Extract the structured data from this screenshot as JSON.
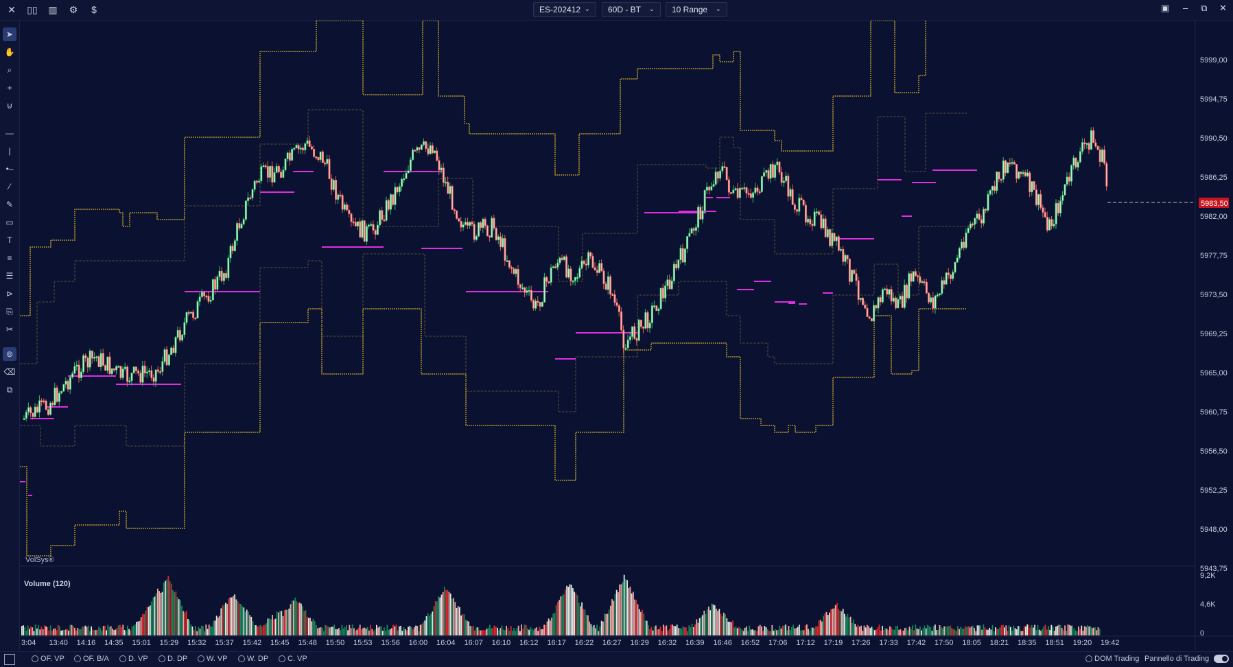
{
  "toolbar": {
    "icons": [
      "close-icon",
      "compare-icon",
      "bar-chart-icon",
      "settings-icon",
      "dollar-icon"
    ],
    "symbol": "ES-202412",
    "period": "60D - BT",
    "range": "10 Range"
  },
  "left_tools": [
    "pointer",
    "hand",
    "zoom",
    "crosshair",
    "magnet",
    "horizontal-line",
    "vertical-line",
    "ray",
    "trend-line",
    "brush",
    "rectangle",
    "text",
    "fib-lines",
    "fib-levels",
    "fan",
    "profile",
    "scissors",
    "magnet-active",
    "eraser",
    "layers"
  ],
  "price_axis": {
    "labels": [
      "5999,00",
      "5994,75",
      "5990,50",
      "5986,25",
      "5982,00",
      "5977,75",
      "5973,50",
      "5969,25",
      "5965,00",
      "5960,75",
      "5956,50",
      "5952,25",
      "5948,00",
      "5943,75"
    ],
    "current_price": "5983,50"
  },
  "watermark": "VolSys®",
  "volume": {
    "title": "Volume (120)",
    "axis_labels": [
      "9,2K",
      "4,6K",
      "0"
    ]
  },
  "time_axis": [
    "3:04",
    "13:40",
    "14:16",
    "14:35",
    "15:01",
    "15:29",
    "15:32",
    "15:37",
    "15:42",
    "15:45",
    "15:48",
    "15:50",
    "15:53",
    "15:56",
    "16:00",
    "16:04",
    "16:07",
    "16:10",
    "16:12",
    "16:17",
    "16:22",
    "16:27",
    "16:29",
    "16:32",
    "16:39",
    "16:46",
    "16:52",
    "17:06",
    "17:12",
    "17:19",
    "17:26",
    "17:33",
    "17:42",
    "17:50",
    "18:05",
    "18:21",
    "18:35",
    "18:51",
    "19:20",
    "19:42"
  ],
  "bottom": {
    "options": [
      "OF. VP",
      "OF. B/A",
      "D. VP",
      "D. DP",
      "W. VP",
      "W. DP",
      "C. VP"
    ],
    "dom": "DOM Trading",
    "panel": "Pannello di Trading"
  },
  "colors": {
    "background": "#0b1130",
    "up": "#2ec26a",
    "down": "#f0605a",
    "band": "#c9a82a",
    "band_inner": "#8a7a3a",
    "vwap": "#e02ee0"
  }
}
